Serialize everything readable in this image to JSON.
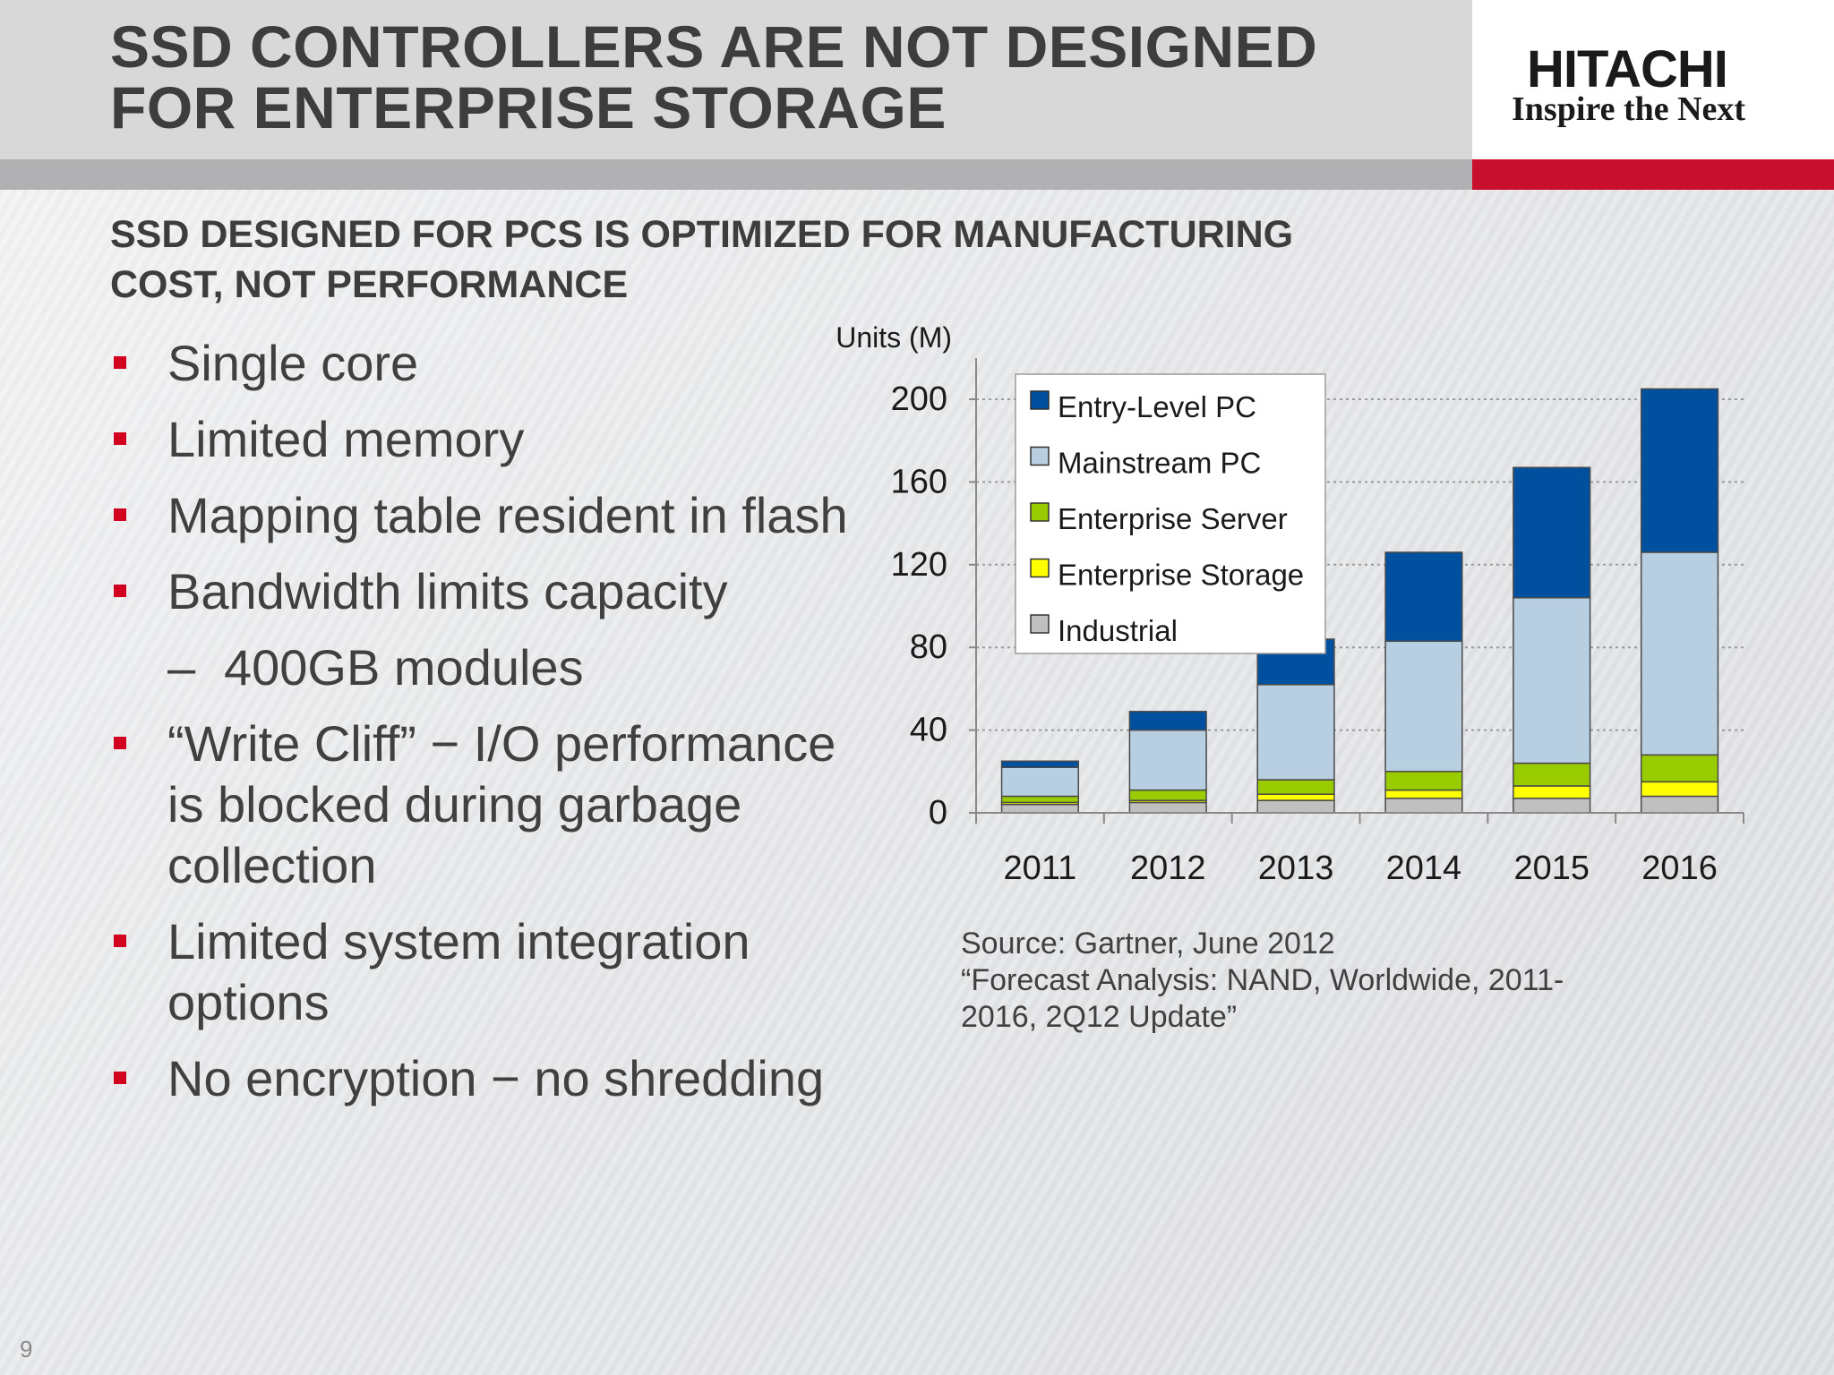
{
  "header": {
    "title_lines": [
      "SSD CONTROLLERS ARE NOT DESIGNED",
      "FOR ENTERPRISE STORAGE"
    ],
    "logo_name": "HITACHI",
    "logo_tagline": "Inspire the Next",
    "accent_color": "#c8102e"
  },
  "subtitle_lines": [
    "SSD DESIGNED FOR PCS IS OPTIMIZED FOR MANUFACTURING",
    "COST, NOT PERFORMANCE"
  ],
  "bullets": [
    {
      "text": "Single core",
      "level": 1
    },
    {
      "text": "Limited memory",
      "level": 1
    },
    {
      "text": "Mapping table resident in flash",
      "level": 1
    },
    {
      "text": "Bandwidth limits capacity",
      "level": 1
    },
    {
      "text": "400GB modules",
      "level": 2
    },
    {
      "text": "“Write Cliff” − I/O performance is blocked during garbage collection",
      "level": 1
    },
    {
      "text": "Limited system integration options",
      "level": 1
    },
    {
      "text": "No encryption − no shredding",
      "level": 1
    }
  ],
  "sub_bullet_dash": "–",
  "chart_data": {
    "type": "bar",
    "stacked": true,
    "title": "",
    "xlabel": "",
    "ylabel": "Units (M)",
    "categories": [
      "2011",
      "2012",
      "2013",
      "2014",
      "2015",
      "2016"
    ],
    "ylim": [
      0,
      200
    ],
    "yticks": [
      0,
      40,
      80,
      120,
      160,
      200
    ],
    "grid": true,
    "legend_position": "top-left",
    "series": [
      {
        "name": "Industrial",
        "color": "#c0c0c0",
        "values": [
          4,
          5,
          6,
          7,
          7,
          8
        ]
      },
      {
        "name": "Enterprise Storage",
        "color": "#ffff00",
        "values": [
          1,
          1,
          3,
          4,
          6,
          7
        ]
      },
      {
        "name": "Enterprise Server",
        "color": "#99cc00",
        "values": [
          3,
          5,
          7,
          9,
          11,
          13
        ]
      },
      {
        "name": "Mainstream PC",
        "color": "#b7cfe0",
        "values": [
          14,
          29,
          46,
          63,
          80,
          98
        ]
      },
      {
        "name": "Entry-Level PC",
        "color": "#0050a0",
        "values": [
          3,
          9,
          22,
          43,
          63,
          79
        ]
      }
    ],
    "legend_order": [
      "Entry-Level PC",
      "Mainstream PC",
      "Enterprise Server",
      "Enterprise Storage",
      "Industrial"
    ]
  },
  "source_lines": [
    "Source: Gartner, June 2012",
    "“Forecast Analysis: NAND, Worldwide, 2011-",
    "2016, 2Q12 Update”"
  ],
  "page_number": "9"
}
